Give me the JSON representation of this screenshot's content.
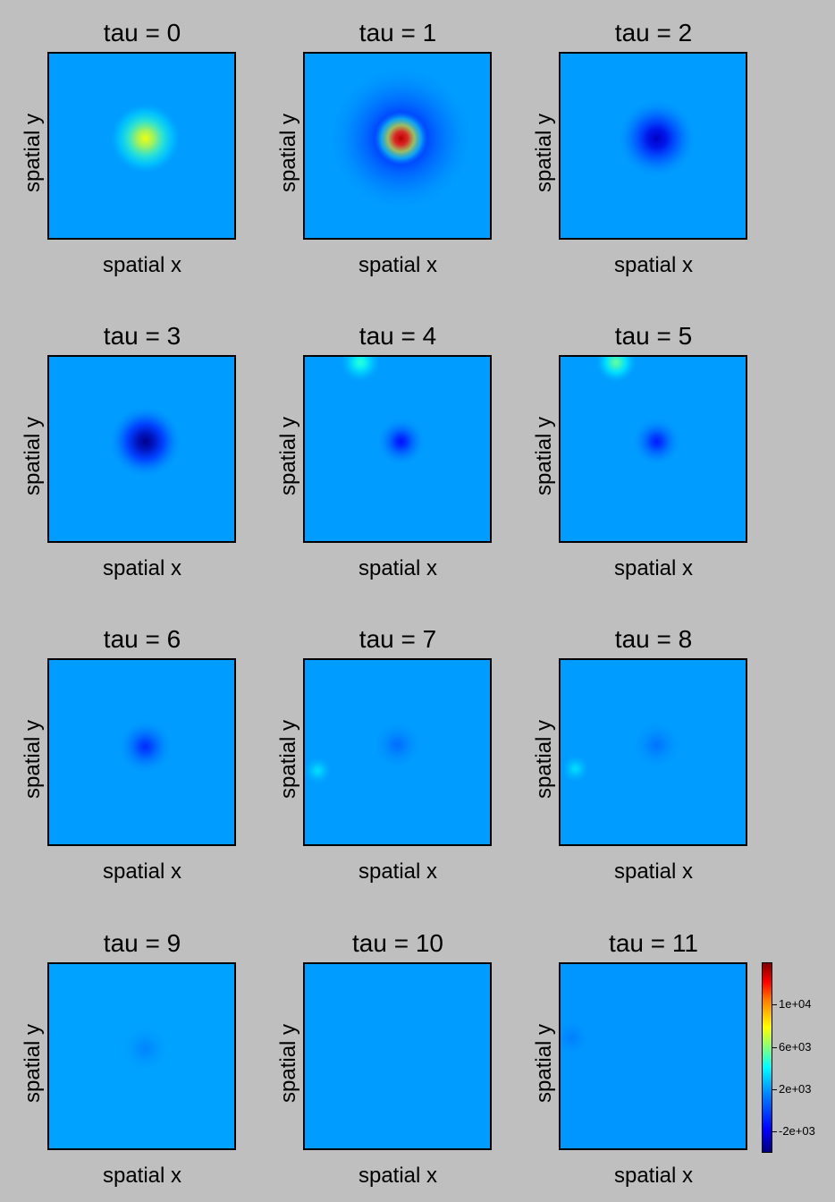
{
  "chart_data": {
    "type": "heatmap",
    "xlabel": "spatial x",
    "ylabel": "spatial y",
    "panels": [
      {
        "title": "tau = 0",
        "blobs": [
          {
            "x": 0.52,
            "y": 0.46,
            "v": 7000,
            "r": 0.12
          }
        ],
        "background": 1000
      },
      {
        "title": "tau = 1",
        "blobs": [
          {
            "x": 0.52,
            "y": 0.46,
            "v": 13000,
            "r": 0.09
          },
          {
            "x": 0.52,
            "y": 0.46,
            "v": -1800,
            "r": 0.24
          }
        ],
        "background": 1000
      },
      {
        "title": "tau = 2",
        "blobs": [
          {
            "x": 0.52,
            "y": 0.46,
            "v": -2800,
            "r": 0.13
          }
        ],
        "background": 1000
      },
      {
        "title": "tau = 3",
        "blobs": [
          {
            "x": 0.52,
            "y": 0.46,
            "v": -3800,
            "r": 0.12
          }
        ],
        "background": 1000
      },
      {
        "title": "tau = 4",
        "blobs": [
          {
            "x": 0.52,
            "y": 0.46,
            "v": -1500,
            "r": 0.08
          },
          {
            "x": 0.3,
            "y": 0.03,
            "v": 3500,
            "r": 0.07
          }
        ],
        "background": 1000
      },
      {
        "title": "tau = 5",
        "blobs": [
          {
            "x": 0.52,
            "y": 0.46,
            "v": -1300,
            "r": 0.08
          },
          {
            "x": 0.3,
            "y": 0.03,
            "v": 4500,
            "r": 0.07
          }
        ],
        "background": 1000
      },
      {
        "title": "tau = 6",
        "blobs": [
          {
            "x": 0.52,
            "y": 0.47,
            "v": -1000,
            "r": 0.09
          }
        ],
        "background": 1000
      },
      {
        "title": "tau = 7",
        "blobs": [
          {
            "x": 0.5,
            "y": 0.46,
            "v": 200,
            "r": 0.08
          },
          {
            "x": 0.07,
            "y": 0.6,
            "v": 2200,
            "r": 0.05
          }
        ],
        "background": 1000
      },
      {
        "title": "tau = 8",
        "blobs": [
          {
            "x": 0.52,
            "y": 0.46,
            "v": 300,
            "r": 0.08
          },
          {
            "x": 0.08,
            "y": 0.59,
            "v": 2200,
            "r": 0.05
          }
        ],
        "background": 1000
      },
      {
        "title": "tau = 9",
        "blobs": [
          {
            "x": 0.52,
            "y": 0.46,
            "v": 600,
            "r": 0.08
          }
        ],
        "background": 1100
      },
      {
        "title": "tau = 10",
        "blobs": [],
        "background": 1000
      },
      {
        "title": "tau = 11",
        "blobs": [
          {
            "x": 0.06,
            "y": 0.4,
            "v": 500,
            "r": 0.06
          }
        ],
        "background": 900
      }
    ],
    "colorbar": {
      "range": [
        -4000,
        14000
      ],
      "ticks": [
        {
          "value": -2000,
          "label": "-2e+03"
        },
        {
          "value": 2000,
          "label": "2e+03"
        },
        {
          "value": 6000,
          "label": "6e+03"
        },
        {
          "value": 10000,
          "label": "1e+04"
        }
      ]
    }
  }
}
